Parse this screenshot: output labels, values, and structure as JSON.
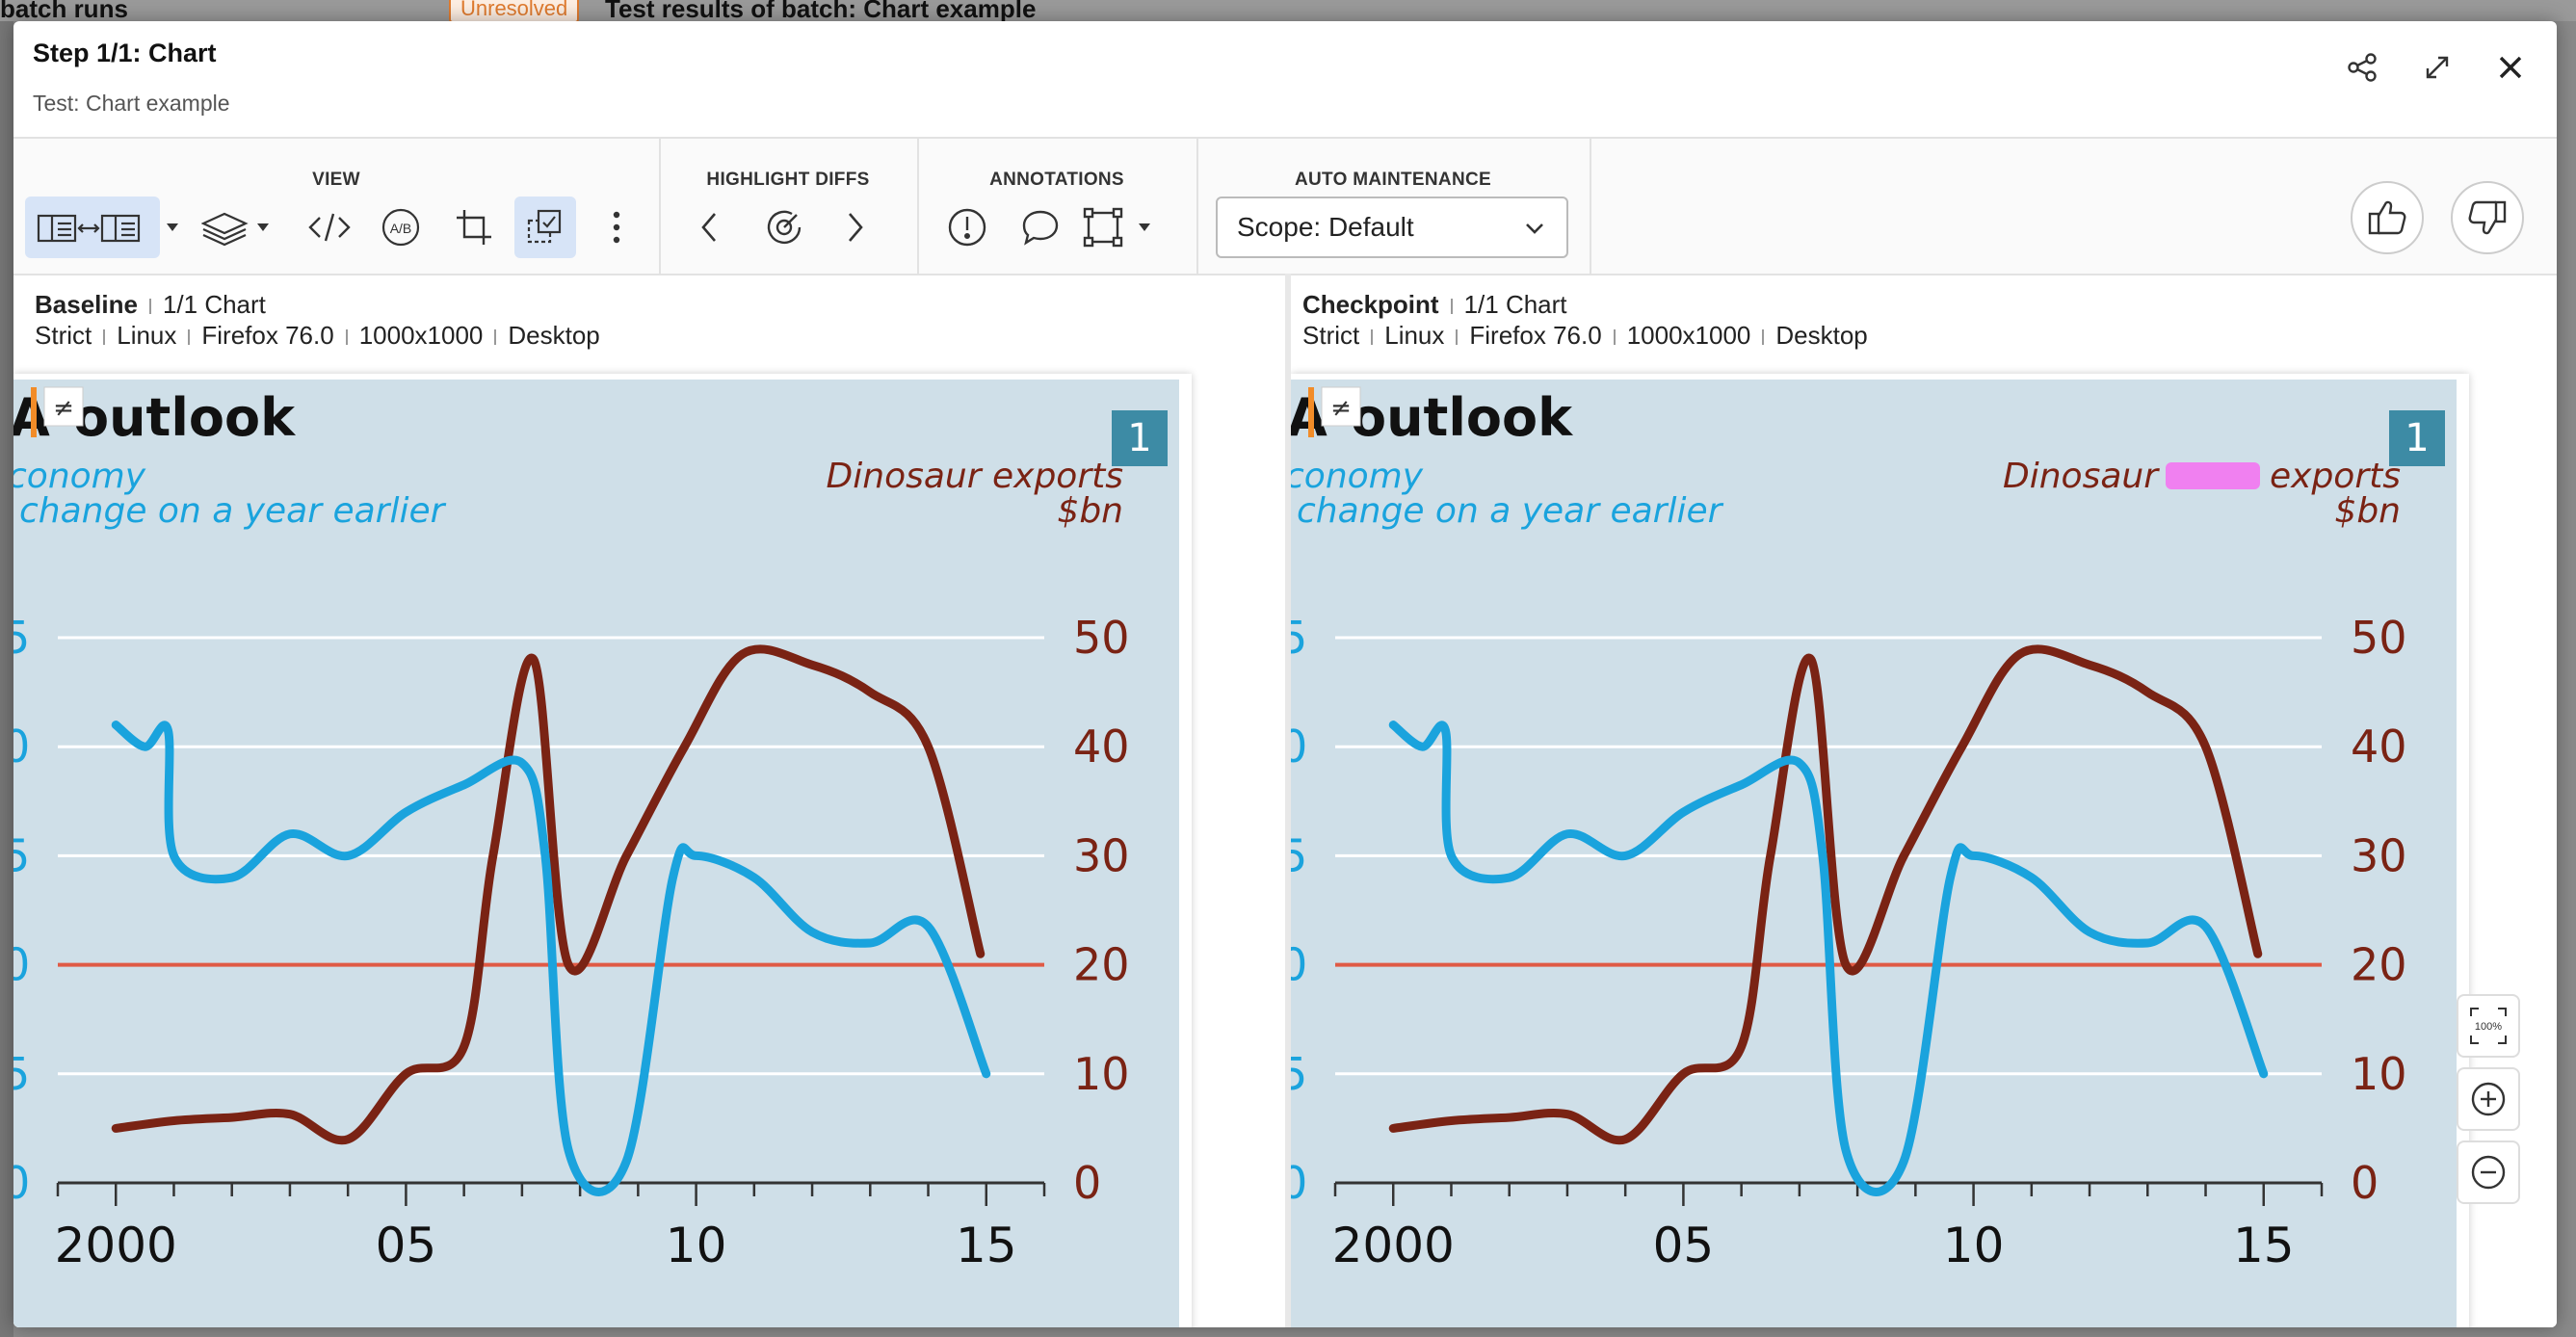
{
  "background": {
    "title": "batch runs",
    "badge": "Unresolved",
    "results_title": "Test results of batch: Chart example"
  },
  "header": {
    "title": "Step 1/1: Chart",
    "subtitle": "Test: Chart example",
    "icons": [
      "share-icon",
      "expand-icon",
      "close-icon"
    ]
  },
  "toolbar": {
    "view_label": "VIEW",
    "highlight_label": "HIGHLIGHT DIFFS",
    "annotations_label": "ANNOTATIONS",
    "auto_label": "AUTO MAINTENANCE",
    "scope_value": "Scope: Default",
    "ab_text": "A/B",
    "view_icons": [
      "side-by-side-icon",
      "layers-icon",
      "code-icon",
      "ab-compare-icon",
      "crop-icon",
      "region-select-icon",
      "more-icon"
    ],
    "highlight_icons": [
      "prev-diff-icon",
      "target-icon",
      "next-diff-icon"
    ],
    "annotation_icons": [
      "issue-icon",
      "comment-icon",
      "region-icon"
    ]
  },
  "baseline": {
    "label": "Baseline",
    "step": "1/1 Chart",
    "meta": [
      "Strict",
      "Linux",
      "Firefox 76.0",
      "1000x1000",
      "Desktop"
    ]
  },
  "checkpoint": {
    "label": "Checkpoint",
    "step": "1/1 Chart",
    "meta": [
      "Strict",
      "Linux",
      "Firefox 76.0",
      "1000x1000",
      "Desktop"
    ]
  },
  "diff_marker": "≠",
  "zoom": {
    "fit_label": "100%"
  },
  "colors": {
    "accent": "#1aa3dd",
    "dino": "#7a2314",
    "zero_line": "#e05a45",
    "chart_bg": "#cfdfe8",
    "badge": "#3d8ba5",
    "active": "#d7e4f7"
  },
  "chart_data": {
    "type": "line",
    "title": "outlook",
    "title_prefix": "A",
    "badge": "1",
    "left_series_label": [
      "conomy",
      "change on a year earlier"
    ],
    "right_series_label_baseline": [
      "Dinosaur exports",
      "$bn"
    ],
    "right_series_label_checkpoint": [
      "Dinosaur",
      "exports",
      "$bn"
    ],
    "x_ticks": [
      "2000",
      "05",
      "10",
      "15"
    ],
    "right_y_ticks": [
      "50",
      "40",
      "30",
      "20",
      "10",
      "0"
    ],
    "right_ylim": [
      0,
      50
    ],
    "x_range": [
      1999,
      2016
    ],
    "series": [
      {
        "axis": "left",
        "x": [
          2000,
          2000.5,
          2000.9,
          2001,
          2002,
          2003,
          2004,
          2005,
          2006,
          2007,
          2007.4,
          2007.8,
          2008.8,
          2009.6,
          2010,
          2011,
          2012,
          2013,
          2014,
          2015
        ],
        "y": [
          42,
          40,
          41.5,
          30,
          28,
          32,
          30,
          34,
          36.5,
          38.5,
          30,
          3,
          2,
          28,
          30,
          28,
          23,
          22,
          23.5,
          10
        ]
      },
      {
        "axis": "right",
        "x": [
          2000,
          2001,
          2002,
          2003,
          2004,
          2005,
          2006,
          2006.5,
          2007.2,
          2007.8,
          2008.8,
          2009.8,
          2010.8,
          2012,
          2013,
          2014,
          2014.9
        ],
        "y": [
          5,
          5.7,
          6,
          6.3,
          4,
          10,
          12.5,
          30,
          48,
          20,
          30,
          40,
          48.5,
          47.5,
          45,
          40,
          21
        ]
      }
    ]
  }
}
